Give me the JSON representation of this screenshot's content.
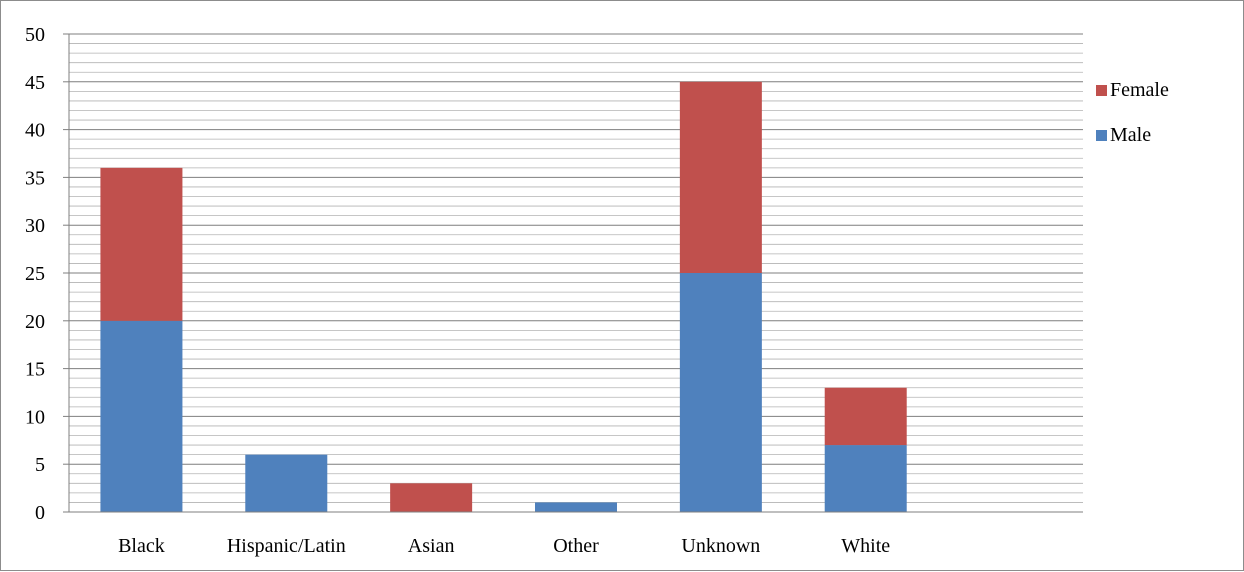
{
  "chart_data": {
    "type": "bar",
    "stacked": true,
    "categories": [
      "Black",
      "Hispanic/Latin",
      "Asian",
      "Other",
      "Unknown",
      "White"
    ],
    "series": [
      {
        "name": "Male",
        "values": [
          20,
          6,
          0,
          1,
          25,
          7
        ],
        "color": "#4f81bd"
      },
      {
        "name": "Female",
        "values": [
          16,
          0,
          3,
          0,
          20,
          6
        ],
        "color": "#c0504d"
      }
    ],
    "ylim": [
      0,
      50
    ],
    "y_ticks": [
      0,
      5,
      10,
      15,
      20,
      25,
      30,
      35,
      40,
      45,
      50
    ],
    "minor_gridlines": true,
    "legend_position": "right",
    "legend_order": [
      "Female",
      "Male"
    ]
  }
}
